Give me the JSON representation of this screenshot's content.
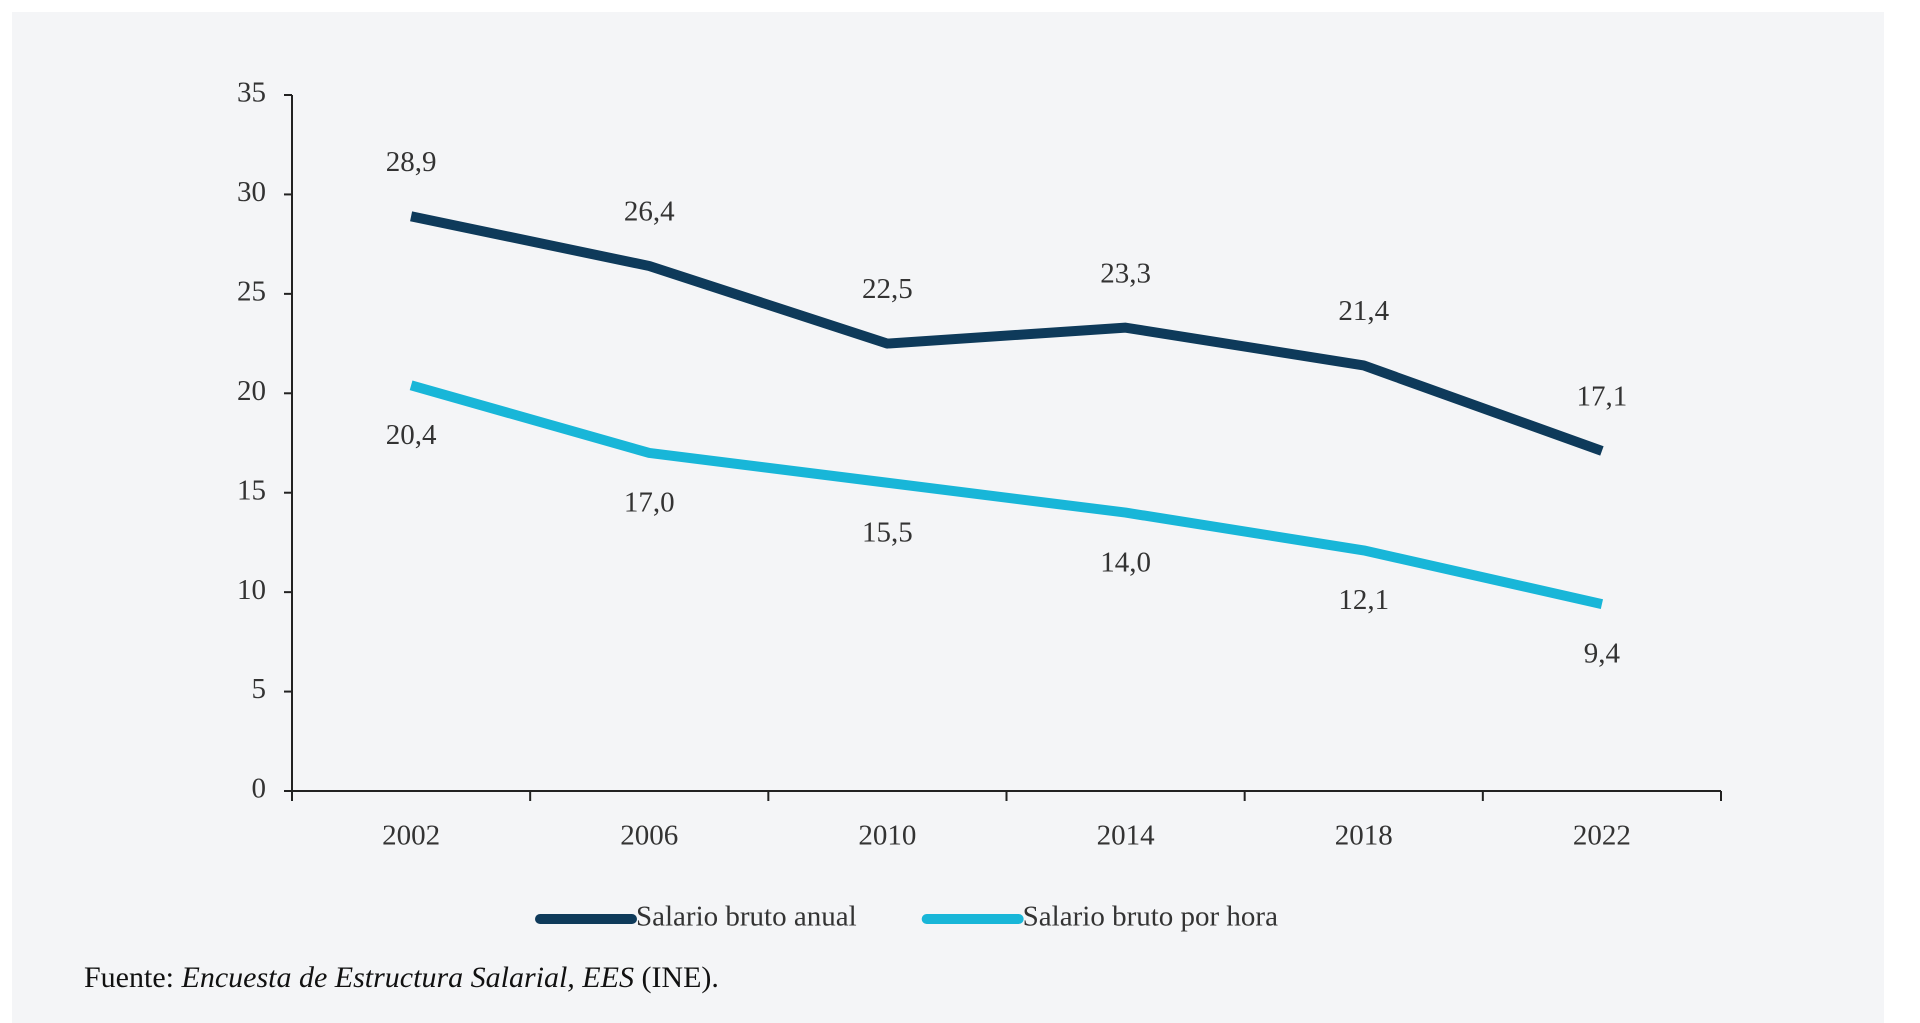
{
  "chart_data": {
    "type": "line",
    "categories": [
      "2002",
      "2006",
      "2010",
      "2014",
      "2018",
      "2022"
    ],
    "series": [
      {
        "name": "Salario bruto anual",
        "color": "#0e3a5a",
        "values": [
          28.9,
          26.4,
          22.5,
          23.3,
          21.4,
          17.1
        ],
        "value_labels": [
          "28,9",
          "26,4",
          "22,5",
          "23,3",
          "21,4",
          "17,1"
        ],
        "label_position": "above"
      },
      {
        "name": "Salario bruto por hora",
        "color": "#18b6d8",
        "values": [
          20.4,
          17.0,
          15.5,
          14.0,
          12.1,
          9.4
        ],
        "value_labels": [
          "20,4",
          "17,0",
          "15,5",
          "14,0",
          "12,1",
          "9,4"
        ],
        "label_position": "below"
      }
    ],
    "ylim": [
      0,
      35
    ],
    "yticks": [
      0,
      5,
      10,
      15,
      20,
      25,
      30,
      35
    ],
    "grid": false,
    "legend": "bottom",
    "source": {
      "prefix": "Fuente:",
      "title": "Encuesta de Estructura Salarial, EES",
      "suffix": "(INE)."
    }
  }
}
